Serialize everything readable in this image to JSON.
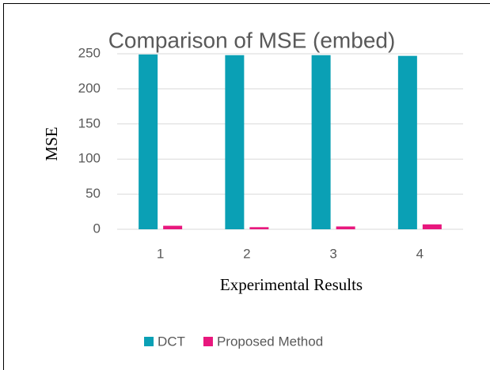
{
  "chart_data": {
    "type": "bar",
    "title": "Comparison of MSE (embed)",
    "x_label": "Experimental Results",
    "y_label": "MSE",
    "categories": [
      "1",
      "2",
      "3",
      "4"
    ],
    "series": [
      {
        "name": "DCT",
        "color": "#0aa0b5",
        "values": [
          249,
          248,
          248,
          247
        ]
      },
      {
        "name": "Proposed Method",
        "color": "#e8177d",
        "values": [
          5,
          3,
          4,
          7
        ]
      }
    ],
    "ylim": [
      0,
      250
    ],
    "yticks": [
      0,
      50,
      100,
      150,
      200,
      250
    ],
    "grid": true,
    "legend": "bottom"
  }
}
